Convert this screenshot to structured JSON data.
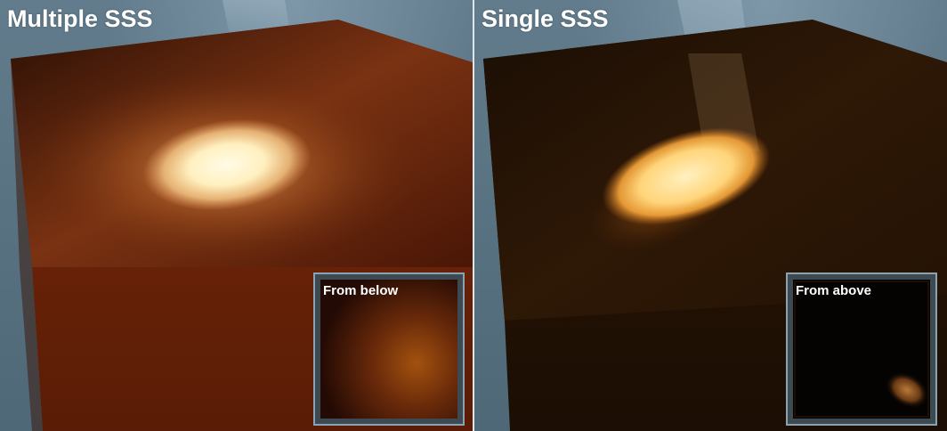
{
  "panels": [
    {
      "title": "Multiple SSS",
      "inset_label": "From below"
    },
    {
      "title": "Single SSS",
      "inset_label": "From above"
    }
  ],
  "colors": {
    "background": "#5d7687",
    "divider": "#dfe6ea",
    "multiple_glow": "#fff0c0",
    "single_glow": "#ffc860",
    "multiple_cube": "#7a2a0a",
    "single_cube": "#2e1806"
  }
}
